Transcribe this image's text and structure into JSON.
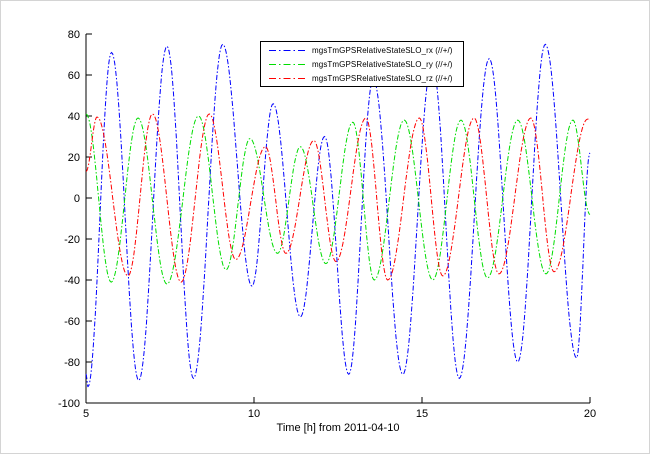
{
  "figure": {
    "background": "#ffffff",
    "frame_color": "#d4d4d4"
  },
  "chart_data": {
    "type": "line",
    "title": "",
    "xlabel": "Time [h] from 2011-04-10",
    "ylabel": "",
    "xlim": [
      5,
      20
    ],
    "ylim": [
      -100,
      80
    ],
    "xticks": [
      5,
      10,
      15,
      20
    ],
    "yticks": [
      80,
      60,
      40,
      20,
      0,
      -20,
      -40,
      -60,
      -80,
      -100
    ],
    "grid": false,
    "axis_color": "#000000",
    "tick_direction": "in",
    "legend": {
      "position": "top-center",
      "border_color": "#000000",
      "background": "#ffffff"
    },
    "series": [
      {
        "name": "mgsTmGPSRelativeStateSLO_rx (//+/)",
        "color": "#0000ff",
        "linestyle": "dash-dot",
        "keypoints": [
          [
            5.0,
            -86
          ],
          [
            5.06,
            -92
          ],
          [
            5.76,
            71
          ],
          [
            6.57,
            -89
          ],
          [
            7.41,
            74
          ],
          [
            8.2,
            -88
          ],
          [
            9.07,
            75
          ],
          [
            9.94,
            -43
          ],
          [
            10.57,
            46
          ],
          [
            11.38,
            -58
          ],
          [
            12.1,
            30
          ],
          [
            12.82,
            -86
          ],
          [
            13.55,
            58
          ],
          [
            14.43,
            -86
          ],
          [
            15.3,
            66
          ],
          [
            16.11,
            -88
          ],
          [
            17.0,
            68
          ],
          [
            17.85,
            -80
          ],
          [
            18.67,
            75
          ],
          [
            19.6,
            -78
          ],
          [
            20.0,
            22
          ]
        ]
      },
      {
        "name": "mgsTmGPSRelativeStateSLO_ry (//+/)",
        "color": "#00dd00",
        "linestyle": "dash-dot",
        "keypoints": [
          [
            5.0,
            41
          ],
          [
            5.75,
            -41
          ],
          [
            6.55,
            39
          ],
          [
            7.41,
            -42
          ],
          [
            8.35,
            40
          ],
          [
            9.17,
            -35
          ],
          [
            9.88,
            29
          ],
          [
            10.7,
            -27
          ],
          [
            11.38,
            25
          ],
          [
            12.14,
            -32
          ],
          [
            12.94,
            37
          ],
          [
            13.58,
            -40
          ],
          [
            14.47,
            38
          ],
          [
            15.32,
            -40
          ],
          [
            16.16,
            38
          ],
          [
            16.95,
            -39
          ],
          [
            17.85,
            38
          ],
          [
            18.69,
            -37
          ],
          [
            19.49,
            38
          ],
          [
            20.0,
            -8
          ]
        ]
      },
      {
        "name": "mgsTmGPSRelativeStateSLO_rz (//+/)",
        "color": "#ff0000",
        "linestyle": "dash-dot",
        "keypoints": [
          [
            5.0,
            13
          ],
          [
            5.33,
            39.5
          ],
          [
            6.25,
            -38
          ],
          [
            6.98,
            41
          ],
          [
            7.83,
            -41
          ],
          [
            8.67,
            41
          ],
          [
            9.46,
            -30
          ],
          [
            10.34,
            25
          ],
          [
            10.95,
            -27
          ],
          [
            11.78,
            28
          ],
          [
            12.44,
            -31
          ],
          [
            13.33,
            39
          ],
          [
            13.98,
            -40
          ],
          [
            14.92,
            39
          ],
          [
            15.62,
            -38
          ],
          [
            16.55,
            39
          ],
          [
            17.29,
            -37
          ],
          [
            18.24,
            39
          ],
          [
            18.93,
            -36
          ],
          [
            19.93,
            38.5
          ],
          [
            20.0,
            38
          ]
        ]
      }
    ]
  }
}
